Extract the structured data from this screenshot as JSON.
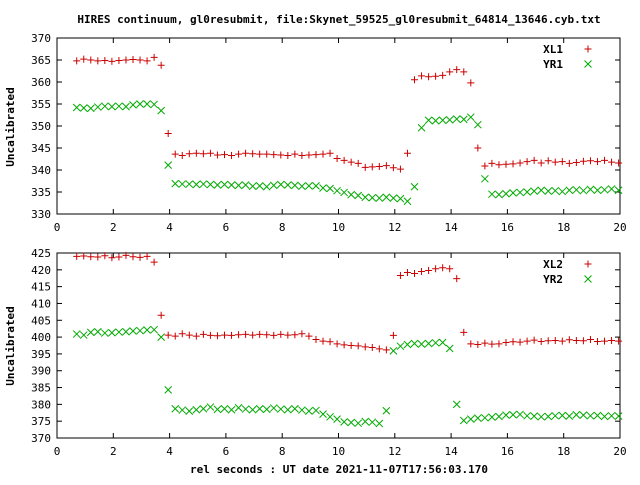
{
  "title": "HIRES continuum, gl0resubmit, file:Skynet_59525_gl0resubmit_64814_13646.cyb.txt",
  "xlabel": "rel seconds : UT date 2021-11-07T17:56:03.170",
  "chart_data": [
    {
      "type": "scatter",
      "ylabel": "Uncalibrated",
      "xlim": [
        0,
        20
      ],
      "ylim": [
        330,
        370
      ],
      "xticks": [
        0,
        2,
        4,
        6,
        8,
        10,
        12,
        14,
        16,
        18,
        20
      ],
      "yticks": [
        330,
        335,
        340,
        345,
        350,
        355,
        360,
        365,
        370
      ],
      "x": [
        0.7,
        0.95,
        1.2,
        1.45,
        1.7,
        1.95,
        2.2,
        2.45,
        2.7,
        2.95,
        3.2,
        3.45,
        3.7,
        3.95,
        4.2,
        4.45,
        4.7,
        4.95,
        5.2,
        5.45,
        5.7,
        5.95,
        6.2,
        6.45,
        6.7,
        6.95,
        7.2,
        7.45,
        7.7,
        7.95,
        8.2,
        8.45,
        8.7,
        8.95,
        9.2,
        9.45,
        9.7,
        9.95,
        10.2,
        10.45,
        10.7,
        10.95,
        11.2,
        11.45,
        11.7,
        11.95,
        12.2,
        12.45,
        12.7,
        12.95,
        13.2,
        13.45,
        13.7,
        13.95,
        14.2,
        14.45,
        14.7,
        14.95,
        15.2,
        15.45,
        15.7,
        15.95,
        16.2,
        16.45,
        16.7,
        16.95,
        17.2,
        17.45,
        17.7,
        17.95,
        18.2,
        18.45,
        18.7,
        18.95,
        19.2,
        19.45,
        19.7,
        19.95
      ],
      "series": [
        {
          "name": "XL1",
          "marker": "plus",
          "color": "#cc0000",
          "values": [
            364.8,
            365.2,
            365.0,
            364.8,
            364.9,
            364.7,
            364.9,
            365.0,
            365.1,
            365.0,
            364.8,
            365.6,
            363.8,
            348.3,
            343.6,
            343.3,
            343.7,
            343.8,
            343.7,
            343.8,
            343.4,
            343.5,
            343.3,
            343.6,
            343.8,
            343.7,
            343.6,
            343.6,
            343.5,
            343.4,
            343.3,
            343.6,
            343.3,
            343.4,
            343.5,
            343.6,
            343.8,
            342.6,
            342.2,
            341.8,
            341.5,
            340.6,
            340.7,
            340.8,
            341.0,
            340.5,
            340.2,
            343.8,
            360.5,
            361.4,
            361.2,
            361.3,
            361.5,
            362.3,
            362.8,
            362.3,
            359.8,
            345.0,
            340.9,
            341.5,
            341.2,
            341.3,
            341.4,
            341.6,
            341.9,
            342.2,
            341.6,
            342.1,
            341.8,
            341.9,
            341.5,
            341.7,
            342.0,
            342.1,
            341.9,
            342.2,
            341.8,
            341.6
          ]
        },
        {
          "name": "YR1",
          "marker": "cross",
          "color": "#00aa00",
          "values": [
            354.2,
            354.1,
            354.0,
            354.3,
            354.5,
            354.4,
            354.5,
            354.4,
            354.8,
            355.0,
            355.0,
            354.9,
            353.5,
            341.1,
            336.9,
            336.8,
            336.8,
            336.7,
            336.8,
            336.7,
            336.6,
            336.7,
            336.6,
            336.5,
            336.6,
            336.3,
            336.4,
            336.2,
            336.5,
            336.7,
            336.6,
            336.5,
            336.3,
            336.4,
            336.4,
            335.9,
            335.8,
            335.3,
            334.9,
            334.4,
            334.2,
            333.8,
            333.7,
            333.6,
            333.8,
            333.6,
            333.5,
            332.9,
            336.2,
            349.6,
            351.3,
            351.2,
            351.3,
            351.4,
            351.6,
            351.5,
            352.0,
            350.3,
            338.0,
            334.5,
            334.4,
            334.6,
            334.8,
            334.9,
            335.0,
            335.2,
            335.4,
            335.2,
            335.3,
            335.1,
            335.4,
            335.5,
            335.3,
            335.6,
            335.4,
            335.5,
            335.7,
            335.4
          ]
        }
      ]
    },
    {
      "type": "scatter",
      "ylabel": "Uncalibrated",
      "xlim": [
        0,
        20
      ],
      "ylim": [
        370,
        425
      ],
      "xticks": [
        0,
        2,
        4,
        6,
        8,
        10,
        12,
        14,
        16,
        18,
        20
      ],
      "yticks": [
        370,
        375,
        380,
        385,
        390,
        395,
        400,
        405,
        410,
        415,
        420,
        425
      ],
      "x": [
        0.7,
        0.95,
        1.2,
        1.45,
        1.7,
        1.95,
        2.2,
        2.45,
        2.7,
        2.95,
        3.2,
        3.45,
        3.7,
        3.95,
        4.2,
        4.45,
        4.7,
        4.95,
        5.2,
        5.45,
        5.7,
        5.95,
        6.2,
        6.45,
        6.7,
        6.95,
        7.2,
        7.45,
        7.7,
        7.95,
        8.2,
        8.45,
        8.7,
        8.95,
        9.2,
        9.45,
        9.7,
        9.95,
        10.2,
        10.45,
        10.7,
        10.95,
        11.2,
        11.45,
        11.7,
        11.95,
        12.2,
        12.45,
        12.7,
        12.95,
        13.2,
        13.45,
        13.7,
        13.95,
        14.2,
        14.45,
        14.7,
        14.95,
        15.2,
        15.45,
        15.7,
        15.95,
        16.2,
        16.45,
        16.7,
        16.95,
        17.2,
        17.45,
        17.7,
        17.95,
        18.2,
        18.45,
        18.7,
        18.95,
        19.2,
        19.45,
        19.7,
        19.95
      ],
      "series": [
        {
          "name": "XL2",
          "marker": "plus",
          "color": "#cc0000",
          "values": [
            424.0,
            424.1,
            423.9,
            423.8,
            424.2,
            423.6,
            423.8,
            424.3,
            423.9,
            423.7,
            424.0,
            422.3,
            406.5,
            400.6,
            400.3,
            401.0,
            400.6,
            400.3,
            400.8,
            400.5,
            400.4,
            400.6,
            400.5,
            400.7,
            400.8,
            400.6,
            400.8,
            400.7,
            400.5,
            400.8,
            400.6,
            400.7,
            401.0,
            400.3,
            399.3,
            398.8,
            398.6,
            398.0,
            397.7,
            397.5,
            397.4,
            397.1,
            396.9,
            396.5,
            396.2,
            400.5,
            418.3,
            419.2,
            418.9,
            419.5,
            419.8,
            420.3,
            420.6,
            420.3,
            417.4,
            401.4,
            398.0,
            397.8,
            398.2,
            397.9,
            398.0,
            398.4,
            398.6,
            398.5,
            398.8,
            399.1,
            398.7,
            398.9,
            399.0,
            398.8,
            399.2,
            399.0,
            398.9,
            399.3,
            398.7,
            398.8,
            399.0,
            398.8
          ]
        },
        {
          "name": "YR2",
          "marker": "cross",
          "color": "#00aa00",
          "values": [
            400.9,
            400.6,
            401.4,
            401.6,
            401.2,
            401.3,
            401.5,
            401.6,
            401.8,
            401.9,
            402.1,
            402.2,
            400.0,
            384.3,
            378.7,
            378.3,
            378.0,
            378.4,
            378.7,
            379.2,
            378.5,
            378.7,
            378.4,
            379.0,
            378.6,
            378.4,
            378.7,
            378.5,
            378.9,
            378.6,
            378.4,
            378.7,
            378.3,
            378.0,
            378.2,
            377.1,
            376.3,
            375.6,
            374.8,
            374.6,
            374.4,
            374.9,
            374.7,
            374.3,
            378.1,
            395.9,
            397.3,
            397.8,
            398.1,
            397.9,
            398.1,
            398.3,
            398.4,
            396.6,
            380.0,
            375.2,
            375.6,
            375.9,
            376.0,
            376.2,
            376.4,
            376.8,
            376.9,
            377.0,
            376.6,
            376.5,
            376.3,
            376.4,
            376.6,
            376.7,
            376.5,
            376.9,
            376.8,
            376.6,
            376.7,
            376.4,
            376.6,
            376.5
          ]
        }
      ]
    }
  ]
}
